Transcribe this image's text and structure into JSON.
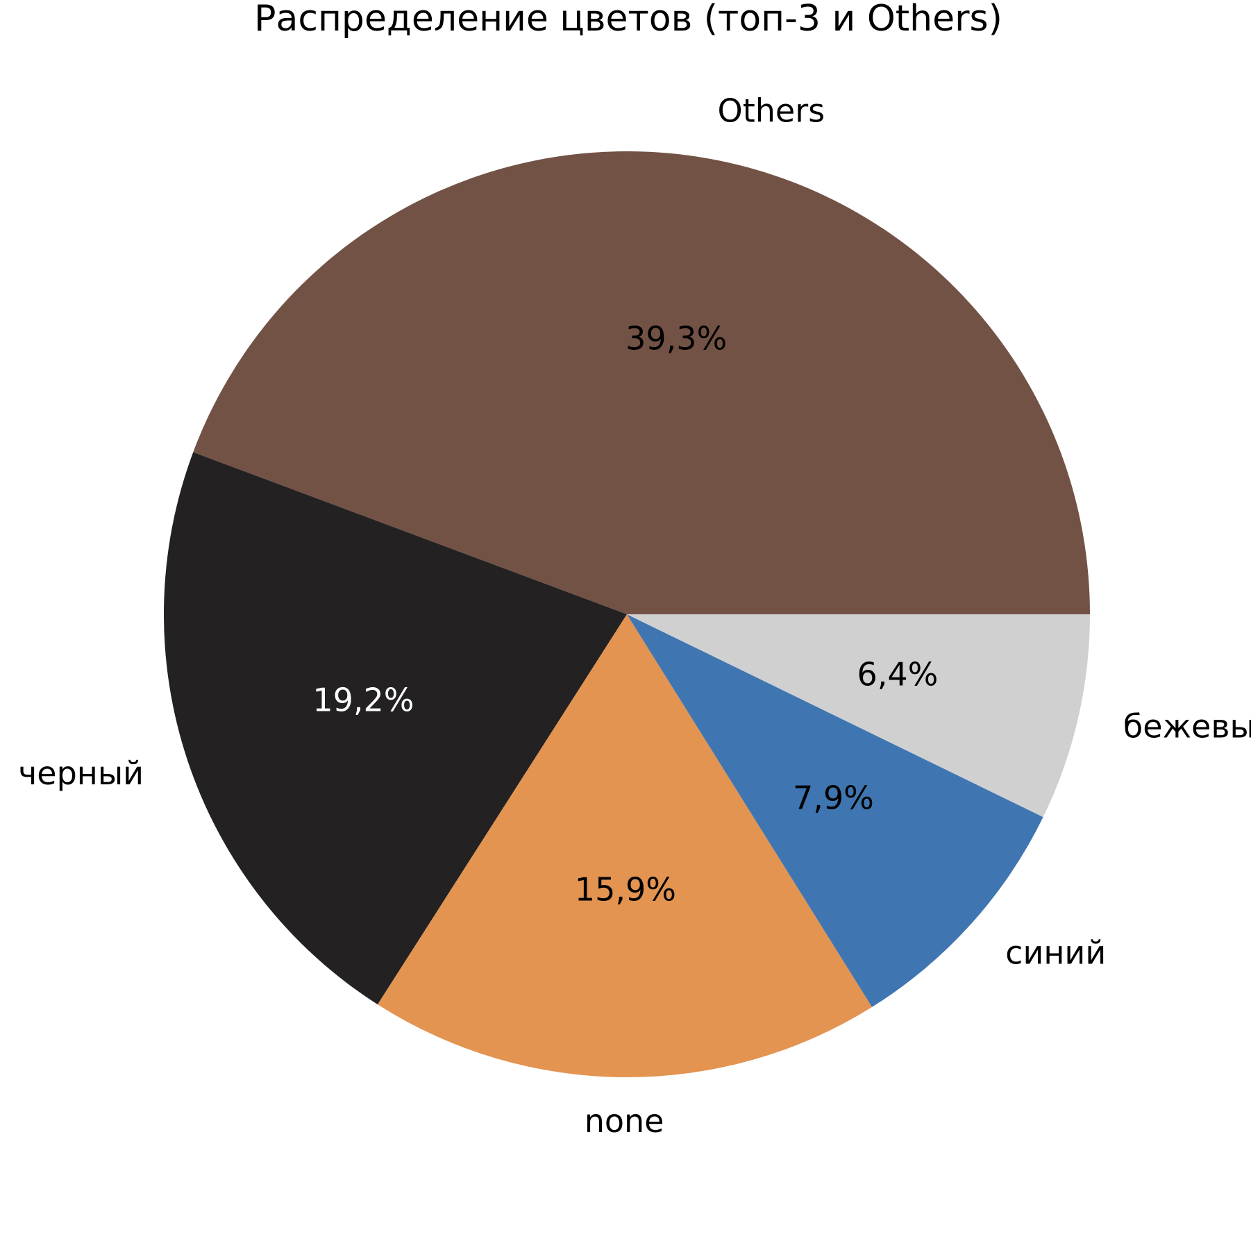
{
  "chart_data": {
    "type": "pie",
    "title": "Распределение цветов (топ-3 и Others)",
    "categories": [
      "Others",
      "черный",
      "none",
      "синий",
      "бежевый"
    ],
    "values": [
      39.3,
      19.2,
      15.9,
      7.9,
      6.4
    ],
    "value_labels": [
      "39,3%",
      "19,2%",
      "15,9%",
      "7,9%",
      "6,4%"
    ],
    "colors": [
      "#735246",
      "#232121",
      "#e39451",
      "#3f76b1",
      "#d0d0d0"
    ]
  }
}
